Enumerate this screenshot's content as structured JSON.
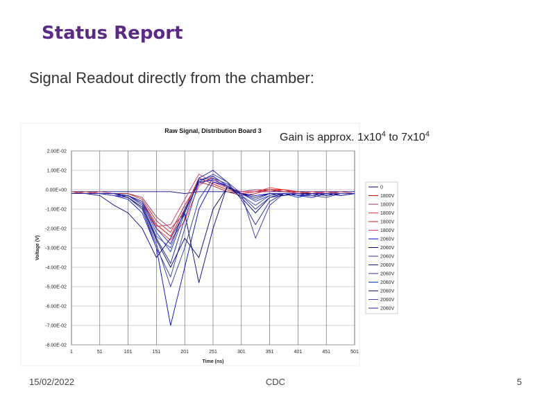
{
  "slide": {
    "title": "Status Report",
    "subtitle": "Signal Readout directly from the chamber:",
    "gain_note": [
      "Gain is approx. 1x10",
      "4",
      " to 7x10",
      "4"
    ],
    "footer": {
      "date": "15/02/2022",
      "center": "CDC",
      "page": "5"
    }
  },
  "chart_data": {
    "type": "line",
    "title": "Raw Signal, Distribution Board 3",
    "x_label": "Time (ns)",
    "y_label": "Voltage (V)",
    "x": [
      1,
      26,
      51,
      76,
      101,
      126,
      151,
      176,
      201,
      226,
      251,
      276,
      301,
      326,
      351,
      376,
      401,
      426,
      451,
      476,
      501
    ],
    "xlim": [
      1,
      501
    ],
    "xticks": [
      1,
      51,
      101,
      151,
      201,
      251,
      301,
      351,
      401,
      451,
      501
    ],
    "ylim": [
      -0.08,
      0.02
    ],
    "yticks": [
      {
        "value": 0.02,
        "label": "2.00E-02"
      },
      {
        "value": 0.01,
        "label": "1.00E-02"
      },
      {
        "value": 0,
        "label": "0.00E+00"
      },
      {
        "value": -0.01,
        "label": "-1.00E-02"
      },
      {
        "value": -0.02,
        "label": "-2.00E-02"
      },
      {
        "value": -0.03,
        "label": "-3.00E-02"
      },
      {
        "value": -0.04,
        "label": "-4.00E-02"
      },
      {
        "value": -0.05,
        "label": "-5.00E-02"
      },
      {
        "value": -0.06,
        "label": "-6.00E-02"
      },
      {
        "value": -0.07,
        "label": "-7.00E-02"
      },
      {
        "value": -0.08,
        "label": "-8.00E-02"
      }
    ],
    "grid": true,
    "series": [
      {
        "name": "0",
        "color": "#000080",
        "values": [
          -0.001,
          -0.001,
          -0.001,
          -0.001,
          -0.001,
          -0.001,
          -0.001,
          -0.001,
          -0.002,
          -0.001,
          -0.001,
          -0.001,
          -0.002,
          -0.001,
          -0.001,
          -0.001,
          -0.001,
          -0.001,
          -0.001,
          -0.001,
          -0.001
        ]
      },
      {
        "name": "1800V",
        "color": "#cc0000",
        "values": [
          -0.002,
          -0.002,
          -0.002,
          -0.002,
          -0.003,
          -0.006,
          -0.018,
          -0.024,
          -0.01,
          0.006,
          0.003,
          0,
          -0.002,
          -0.001,
          0,
          0,
          -0.001,
          -0.002,
          -0.001,
          -0.002,
          -0.002
        ]
      },
      {
        "name": "1800V",
        "color": "#993366",
        "values": [
          -0.002,
          -0.002,
          -0.002,
          -0.002,
          -0.002,
          -0.004,
          -0.014,
          -0.02,
          -0.012,
          0.005,
          0.006,
          0.001,
          -0.001,
          0,
          0,
          -0.001,
          -0.002,
          -0.002,
          -0.001,
          -0.002,
          -0.002
        ]
      },
      {
        "name": "1800V",
        "color": "#ff3333",
        "values": [
          -0.001,
          -0.002,
          -0.002,
          -0.002,
          -0.003,
          -0.008,
          -0.02,
          -0.026,
          -0.016,
          0.002,
          0.007,
          0.002,
          -0.002,
          -0.001,
          0.001,
          0,
          -0.002,
          -0.001,
          -0.002,
          -0.002,
          -0.002
        ]
      },
      {
        "name": "1800V",
        "color": "#b22222",
        "values": [
          -0.002,
          -0.001,
          -0.002,
          -0.002,
          -0.002,
          -0.005,
          -0.016,
          -0.022,
          -0.008,
          0.004,
          0.002,
          -0.001,
          -0.003,
          -0.002,
          0,
          -0.001,
          -0.001,
          -0.002,
          -0.002,
          -0.001,
          -0.002
        ]
      },
      {
        "name": "1800V",
        "color": "#cc3366",
        "values": [
          -0.002,
          -0.002,
          -0.001,
          -0.002,
          -0.003,
          -0.007,
          -0.019,
          -0.018,
          -0.005,
          0.008,
          0.004,
          0.001,
          -0.001,
          -0.001,
          -0.001,
          0,
          -0.002,
          -0.002,
          -0.001,
          -0.002,
          -0.002
        ]
      },
      {
        "name": "2060V",
        "color": "#0000cc",
        "values": [
          -0.002,
          -0.002,
          -0.002,
          -0.003,
          -0.005,
          -0.012,
          -0.03,
          -0.07,
          -0.04,
          -0.01,
          0.004,
          0.002,
          -0.002,
          -0.003,
          -0.002,
          -0.002,
          -0.003,
          -0.004,
          -0.002,
          -0.003,
          -0.002
        ]
      },
      {
        "name": "2060V",
        "color": "#000080",
        "values": [
          -0.002,
          -0.002,
          -0.003,
          -0.008,
          -0.012,
          -0.02,
          -0.035,
          -0.025,
          -0.012,
          -0.048,
          -0.02,
          0.002,
          -0.004,
          -0.012,
          -0.004,
          -0.002,
          -0.003,
          -0.002,
          -0.002,
          -0.002,
          -0.002
        ]
      },
      {
        "name": "2060V",
        "color": "#3333aa",
        "values": [
          -0.002,
          -0.002,
          -0.002,
          -0.002,
          -0.004,
          -0.01,
          -0.03,
          -0.045,
          -0.02,
          0.004,
          0.008,
          0.004,
          -0.002,
          -0.025,
          -0.008,
          -0.002,
          -0.003,
          -0.003,
          -0.002,
          -0.003,
          -0.002
        ]
      },
      {
        "name": "2060V",
        "color": "#1a1a99",
        "values": [
          -0.002,
          -0.002,
          -0.002,
          -0.002,
          -0.003,
          -0.008,
          -0.025,
          -0.038,
          -0.015,
          0.006,
          0.01,
          0.004,
          -0.005,
          -0.018,
          -0.006,
          -0.002,
          -0.002,
          -0.003,
          -0.002,
          -0.002,
          -0.002
        ]
      },
      {
        "name": "2060V",
        "color": "#333399",
        "values": [
          -0.002,
          -0.002,
          -0.002,
          -0.003,
          -0.004,
          -0.01,
          -0.028,
          -0.05,
          -0.03,
          -0.005,
          0.006,
          0.003,
          -0.003,
          -0.01,
          -0.004,
          -0.003,
          -0.002,
          -0.003,
          -0.004,
          -0.002,
          -0.002
        ]
      },
      {
        "name": "2060V",
        "color": "#0033cc",
        "values": [
          -0.002,
          -0.002,
          -0.002,
          -0.002,
          -0.003,
          -0.007,
          -0.022,
          -0.032,
          -0.012,
          0.005,
          0.007,
          0.002,
          -0.002,
          -0.006,
          -0.003,
          -0.002,
          -0.004,
          -0.002,
          -0.003,
          -0.002,
          -0.002
        ]
      },
      {
        "name": "2060V",
        "color": "#000066",
        "values": [
          -0.002,
          -0.002,
          -0.002,
          -0.002,
          -0.004,
          -0.009,
          -0.026,
          -0.04,
          -0.025,
          -0.035,
          -0.01,
          0.001,
          -0.002,
          -0.004,
          -0.002,
          -0.003,
          -0.002,
          -0.002,
          -0.003,
          -0.002,
          -0.002
        ]
      },
      {
        "name": "2060V",
        "color": "#4444bb",
        "values": [
          -0.002,
          -0.002,
          -0.002,
          -0.003,
          -0.003,
          -0.008,
          -0.024,
          -0.03,
          -0.01,
          0.003,
          0.006,
          0.003,
          -0.003,
          -0.008,
          -0.003,
          -0.002,
          -0.002,
          -0.003,
          -0.002,
          -0.002,
          -0.002
        ]
      },
      {
        "name": "2060V",
        "color": "#2222aa",
        "values": [
          -0.002,
          -0.002,
          -0.002,
          -0.002,
          -0.003,
          -0.006,
          -0.02,
          -0.028,
          -0.011,
          0.004,
          0.005,
          0.002,
          -0.002,
          -0.005,
          -0.002,
          -0.002,
          -0.003,
          -0.002,
          -0.002,
          -0.003,
          -0.002
        ]
      }
    ]
  }
}
